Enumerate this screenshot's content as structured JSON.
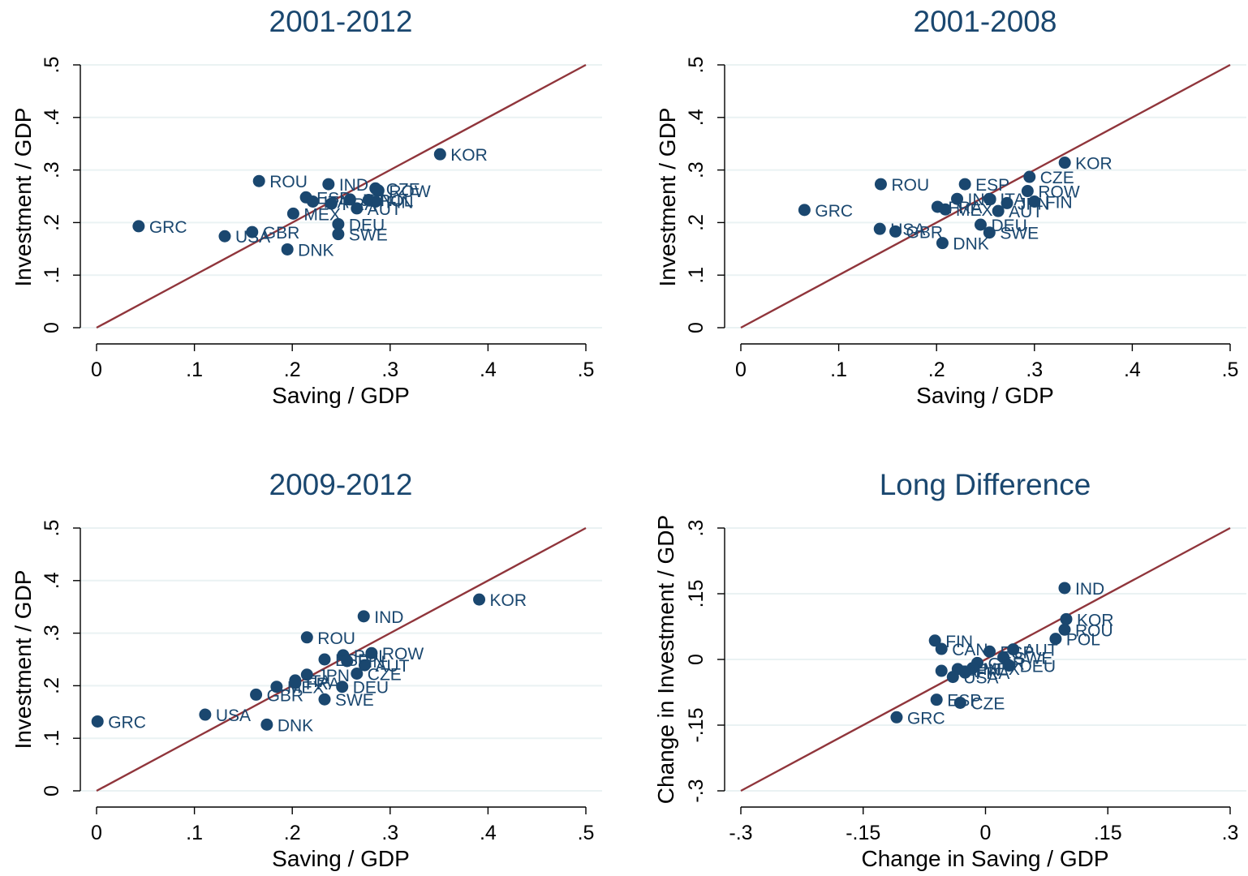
{
  "colors": {
    "marker": "#1a476f",
    "reference_line": "#90353b",
    "grid": "#eaf2f3",
    "title": "#1a476f"
  },
  "chart_data": [
    {
      "type": "scatter",
      "title": "2001-2012",
      "xlabel": "Saving / GDP",
      "ylabel": "Investment / GDP",
      "xlim": [
        0,
        0.5
      ],
      "ylim": [
        0,
        0.5
      ],
      "xticks": [
        {
          "v": 0,
          "label": "0"
        },
        {
          "v": 0.1,
          "label": ".1"
        },
        {
          "v": 0.2,
          "label": ".2"
        },
        {
          "v": 0.3,
          "label": ".3"
        },
        {
          "v": 0.4,
          "label": ".4"
        },
        {
          "v": 0.5,
          "label": ".5"
        }
      ],
      "yticks": [
        {
          "v": 0,
          "label": "0"
        },
        {
          "v": 0.1,
          "label": ".1"
        },
        {
          "v": 0.2,
          "label": ".2"
        },
        {
          "v": 0.3,
          "label": ".3"
        },
        {
          "v": 0.4,
          "label": ".4"
        },
        {
          "v": 0.5,
          "label": ".5"
        }
      ],
      "grid": true,
      "reference_line": [
        [
          0,
          0
        ],
        [
          0.5,
          0.5
        ]
      ],
      "points": [
        {
          "label": "KOR",
          "x": 0.351,
          "y": 0.33
        },
        {
          "label": "ROU",
          "x": 0.166,
          "y": 0.279
        },
        {
          "label": "IND",
          "x": 0.237,
          "y": 0.273
        },
        {
          "label": "CZE",
          "x": 0.285,
          "y": 0.265
        },
        {
          "label": "ROW",
          "x": 0.288,
          "y": 0.261
        },
        {
          "label": "ESP",
          "x": 0.214,
          "y": 0.248
        },
        {
          "label": "ITA",
          "x": 0.221,
          "y": 0.24
        },
        {
          "label": "JPN",
          "x": 0.259,
          "y": 0.244
        },
        {
          "label": "POL",
          "x": 0.278,
          "y": 0.243
        },
        {
          "label": "FIN",
          "x": 0.285,
          "y": 0.24
        },
        {
          "label": "MEX",
          "x": 0.201,
          "y": 0.217
        },
        {
          "label": "AUT",
          "x": 0.266,
          "y": 0.227
        },
        {
          "label": "FRA",
          "x": 0.24,
          "y": 0.236
        },
        {
          "label": "DEU",
          "x": 0.247,
          "y": 0.197
        },
        {
          "label": "SWE",
          "x": 0.247,
          "y": 0.178
        },
        {
          "label": "GRC",
          "x": 0.043,
          "y": 0.193
        },
        {
          "label": "USA",
          "x": 0.131,
          "y": 0.174
        },
        {
          "label": "GBR",
          "x": 0.159,
          "y": 0.182
        },
        {
          "label": "DNK",
          "x": 0.195,
          "y": 0.149
        }
      ]
    },
    {
      "type": "scatter",
      "title": "2001-2008",
      "xlabel": "Saving / GDP",
      "ylabel": "Investment / GDP",
      "xlim": [
        0,
        0.5
      ],
      "ylim": [
        0,
        0.5
      ],
      "xticks": [
        {
          "v": 0,
          "label": "0"
        },
        {
          "v": 0.1,
          "label": ".1"
        },
        {
          "v": 0.2,
          "label": ".2"
        },
        {
          "v": 0.3,
          "label": ".3"
        },
        {
          "v": 0.4,
          "label": ".4"
        },
        {
          "v": 0.5,
          "label": ".5"
        }
      ],
      "yticks": [
        {
          "v": 0,
          "label": "0"
        },
        {
          "v": 0.1,
          "label": ".1"
        },
        {
          "v": 0.2,
          "label": ".2"
        },
        {
          "v": 0.3,
          "label": ".3"
        },
        {
          "v": 0.4,
          "label": ".4"
        },
        {
          "v": 0.5,
          "label": ".5"
        }
      ],
      "grid": true,
      "reference_line": [
        [
          0,
          0
        ],
        [
          0.5,
          0.5
        ]
      ],
      "points": [
        {
          "label": "KOR",
          "x": 0.331,
          "y": 0.314
        },
        {
          "label": "ROU",
          "x": 0.143,
          "y": 0.273
        },
        {
          "label": "ESP",
          "x": 0.229,
          "y": 0.273
        },
        {
          "label": "CZE",
          "x": 0.295,
          "y": 0.287
        },
        {
          "label": "ROW",
          "x": 0.293,
          "y": 0.26
        },
        {
          "label": "IND",
          "x": 0.221,
          "y": 0.245
        },
        {
          "label": "ITA",
          "x": 0.254,
          "y": 0.245
        },
        {
          "label": "JPN",
          "x": 0.272,
          "y": 0.237
        },
        {
          "label": "FIN",
          "x": 0.3,
          "y": 0.24
        },
        {
          "label": "FRA",
          "x": 0.201,
          "y": 0.23
        },
        {
          "label": "MEX",
          "x": 0.209,
          "y": 0.225
        },
        {
          "label": "AUT",
          "x": 0.263,
          "y": 0.222
        },
        {
          "label": "DEU",
          "x": 0.245,
          "y": 0.196
        },
        {
          "label": "SWE",
          "x": 0.254,
          "y": 0.181
        },
        {
          "label": "GRC",
          "x": 0.065,
          "y": 0.224
        },
        {
          "label": "USA",
          "x": 0.142,
          "y": 0.188
        },
        {
          "label": "GBR",
          "x": 0.158,
          "y": 0.183
        },
        {
          "label": "DNK",
          "x": 0.206,
          "y": 0.161
        }
      ]
    },
    {
      "type": "scatter",
      "title": "2009-2012",
      "xlabel": "Saving / GDP",
      "ylabel": "Investment / GDP",
      "xlim": [
        0,
        0.5
      ],
      "ylim": [
        0,
        0.5
      ],
      "xticks": [
        {
          "v": 0,
          "label": "0"
        },
        {
          "v": 0.1,
          "label": ".1"
        },
        {
          "v": 0.2,
          "label": ".2"
        },
        {
          "v": 0.3,
          "label": ".3"
        },
        {
          "v": 0.4,
          "label": ".4"
        },
        {
          "v": 0.5,
          "label": ".5"
        }
      ],
      "yticks": [
        {
          "v": 0,
          "label": "0"
        },
        {
          "v": 0.1,
          "label": ".1"
        },
        {
          "v": 0.2,
          "label": ".2"
        },
        {
          "v": 0.3,
          "label": ".3"
        },
        {
          "v": 0.4,
          "label": ".4"
        },
        {
          "v": 0.5,
          "label": ".5"
        }
      ],
      "grid": true,
      "reference_line": [
        [
          0,
          0
        ],
        [
          0.5,
          0.5
        ]
      ],
      "points": [
        {
          "label": "KOR",
          "x": 0.391,
          "y": 0.364
        },
        {
          "label": "IND",
          "x": 0.273,
          "y": 0.332
        },
        {
          "label": "ROU",
          "x": 0.215,
          "y": 0.292
        },
        {
          "label": "POL",
          "x": 0.252,
          "y": 0.258
        },
        {
          "label": "ROW",
          "x": 0.281,
          "y": 0.262
        },
        {
          "label": "ESP",
          "x": 0.233,
          "y": 0.25
        },
        {
          "label": "FIN",
          "x": 0.256,
          "y": 0.247
        },
        {
          "label": "AUT",
          "x": 0.274,
          "y": 0.239
        },
        {
          "label": "JPN",
          "x": 0.215,
          "y": 0.221
        },
        {
          "label": "CZE",
          "x": 0.266,
          "y": 0.223
        },
        {
          "label": "ITA",
          "x": 0.203,
          "y": 0.21
        },
        {
          "label": "MEX",
          "x": 0.184,
          "y": 0.198
        },
        {
          "label": "FRA",
          "x": 0.203,
          "y": 0.205
        },
        {
          "label": "DEU",
          "x": 0.251,
          "y": 0.198
        },
        {
          "label": "SWE",
          "x": 0.233,
          "y": 0.174
        },
        {
          "label": "GBR",
          "x": 0.163,
          "y": 0.183
        },
        {
          "label": "GRC",
          "x": 0.001,
          "y": 0.132
        },
        {
          "label": "USA",
          "x": 0.111,
          "y": 0.145
        },
        {
          "label": "DNK",
          "x": 0.174,
          "y": 0.126
        }
      ]
    },
    {
      "type": "scatter",
      "title": "Long Difference",
      "xlabel": "Change in Saving / GDP",
      "ylabel": "Change in Investment / GDP",
      "xlim": [
        -0.3,
        0.3
      ],
      "ylim": [
        -0.3,
        0.3
      ],
      "xticks": [
        {
          "v": -0.3,
          "label": "-.3"
        },
        {
          "v": -0.15,
          "label": "-.15"
        },
        {
          "v": 0,
          "label": "0"
        },
        {
          "v": 0.15,
          "label": ".15"
        },
        {
          "v": 0.3,
          "label": ".3"
        }
      ],
      "yticks": [
        {
          "v": -0.3,
          "label": "-.3"
        },
        {
          "v": -0.15,
          "label": "-.15"
        },
        {
          "v": 0,
          "label": "0"
        },
        {
          "v": 0.15,
          "label": ".15"
        },
        {
          "v": 0.3,
          "label": ".3"
        }
      ],
      "grid": true,
      "reference_line": [
        [
          -0.3,
          -0.3
        ],
        [
          0.3,
          0.3
        ]
      ],
      "points": [
        {
          "label": "IND",
          "x": 0.097,
          "y": 0.163
        },
        {
          "label": "KOR",
          "x": 0.099,
          "y": 0.092
        },
        {
          "label": "ROU",
          "x": 0.097,
          "y": 0.068
        },
        {
          "label": "POL",
          "x": 0.086,
          "y": 0.047
        },
        {
          "label": "FIN",
          "x": -0.062,
          "y": 0.043
        },
        {
          "label": "CAN",
          "x": -0.054,
          "y": 0.024
        },
        {
          "label": "ESP",
          "x": 0.005,
          "y": 0.018
        },
        {
          "label": "AUT",
          "x": 0.034,
          "y": 0.023
        },
        {
          "label": "SWE",
          "x": 0.022,
          "y": 0.005
        },
        {
          "label": "GBR",
          "x": -0.01,
          "y": -0.008
        },
        {
          "label": "DEU",
          "x": 0.029,
          "y": -0.014
        },
        {
          "label": "MEX",
          "x": -0.016,
          "y": -0.02
        },
        {
          "label": "JPN",
          "x": -0.034,
          "y": -0.022
        },
        {
          "label": "ITA",
          "x": -0.054,
          "y": -0.026
        },
        {
          "label": "FRA",
          "x": -0.025,
          "y": -0.03
        },
        {
          "label": "USA",
          "x": -0.04,
          "y": -0.04
        },
        {
          "label": "ESP",
          "x": -0.06,
          "y": -0.092
        },
        {
          "label": "CZE",
          "x": -0.031,
          "y": -0.099
        },
        {
          "label": "GRC",
          "x": -0.109,
          "y": -0.132
        }
      ]
    }
  ]
}
